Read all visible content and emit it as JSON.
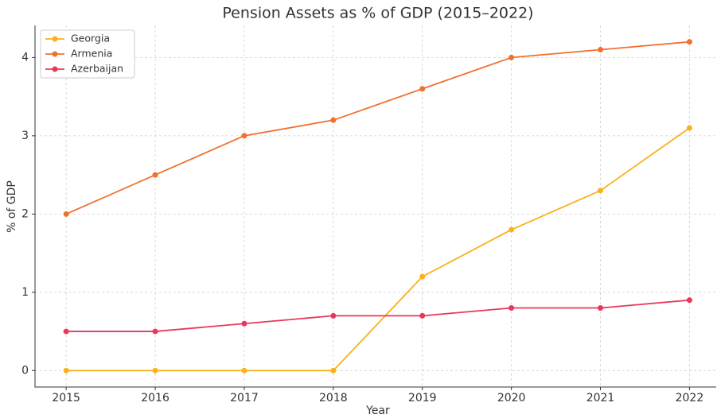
{
  "chart_data": {
    "type": "line",
    "title": "Pension Assets as % of GDP (2015–2022)",
    "x_label": "Year",
    "y_label": "% of GDP",
    "x": [
      2015,
      2016,
      2017,
      2018,
      2019,
      2020,
      2021,
      2022
    ],
    "series": [
      {
        "name": "Georgia",
        "color": "#fbb11b",
        "values": [
          0,
          0,
          0,
          0,
          1.2,
          1.8,
          2.3,
          3.1
        ]
      },
      {
        "name": "Armenia",
        "color": "#f0712f",
        "values": [
          2,
          2.5,
          3,
          3.2,
          3.6,
          4,
          4.1,
          4.2
        ]
      },
      {
        "name": "Azerbaijan",
        "color": "#e9375a",
        "values": [
          0.5,
          0.5,
          0.6,
          0.7,
          0.7,
          0.8,
          0.8,
          0.9
        ]
      }
    ],
    "xlim": [
      2014.65,
      2022.3
    ],
    "ylim": [
      -0.21,
      4.41
    ],
    "xticks": [
      2015,
      2016,
      2017,
      2018,
      2019,
      2020,
      2021,
      2022
    ],
    "yticks": [
      0,
      1,
      2,
      3,
      4
    ],
    "grid": true,
    "legend": "upper-left"
  }
}
